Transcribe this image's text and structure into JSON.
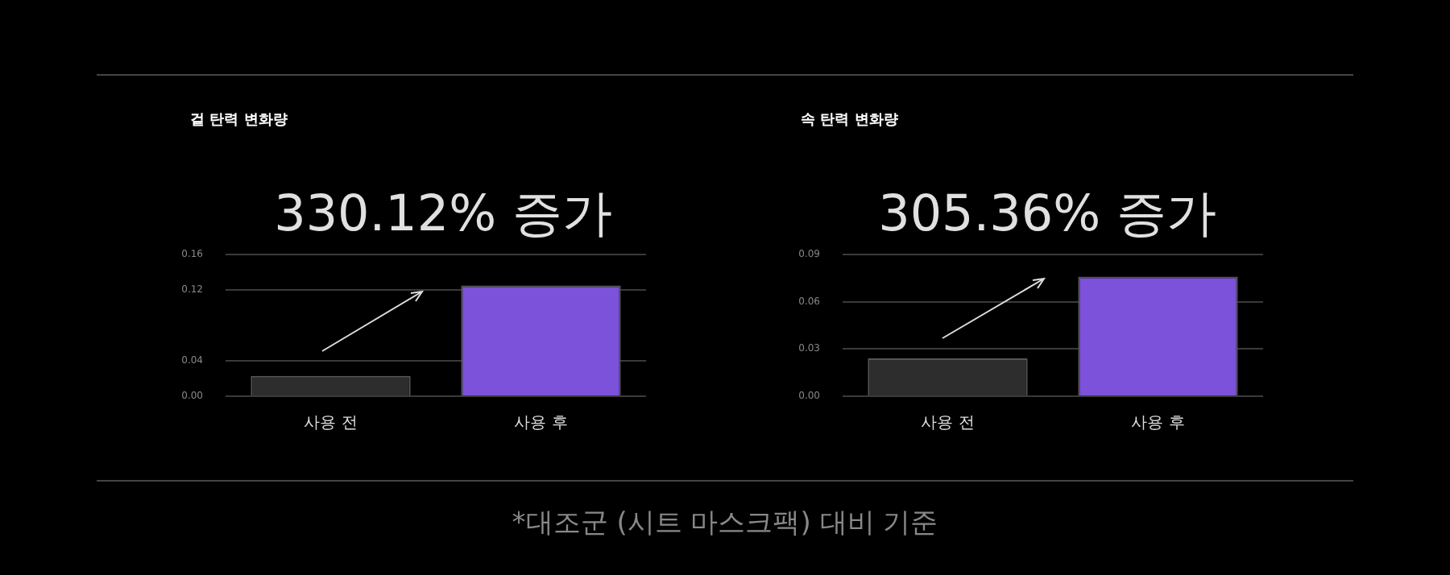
{
  "chart_data": [
    {
      "type": "bar",
      "title": "겉 탄력 변화량",
      "annotations": [
        "330.12% 증가"
      ],
      "categories": [
        "사용 전",
        "사용 후"
      ],
      "values": [
        0.023,
        0.125
      ],
      "colors": [
        "#2d2d2d",
        "#7b52d9"
      ],
      "ylim": [
        0,
        0.16
      ],
      "yticks": [
        {
          "value": 0,
          "label": "0.00"
        },
        0.04,
        0.12,
        0.16
      ],
      "grid": "y"
    },
    {
      "type": "bar",
      "title": "속 탄력 변화량",
      "annotations": [
        "305.36% 증가"
      ],
      "categories": [
        "사용 전",
        "사용 후"
      ],
      "values": [
        0.024,
        0.076
      ],
      "colors": [
        "#2d2d2d",
        "#7b52d9"
      ],
      "ylim": [
        0,
        0.09
      ],
      "yticks": [
        {
          "value": 0,
          "label": "0.00"
        },
        0.03,
        0.06,
        0.09
      ],
      "grid": "y"
    },
    {
      "type": "other",
      "annotations": [
        "*대조군 (시트 마스크팩) 대비 기준"
      ]
    }
  ]
}
